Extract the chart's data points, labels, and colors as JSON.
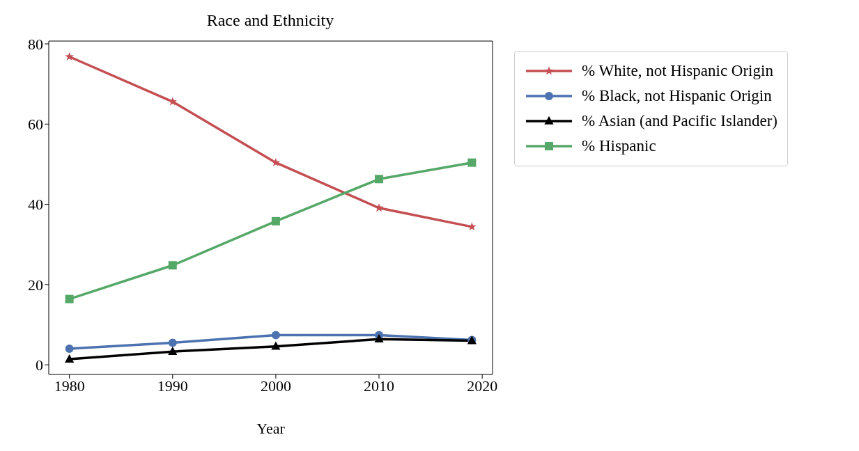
{
  "chart_data": {
    "type": "line",
    "title": "Race and Ethnicity",
    "xlabel": "Year",
    "x": [
      1980,
      1990,
      2000,
      2010,
      2019
    ],
    "series": [
      {
        "name": "% White, not Hispanic Origin",
        "color": "#c44e52",
        "marker": "star",
        "values": [
          76.8,
          65.6,
          50.4,
          39.1,
          34.4
        ]
      },
      {
        "name": "% Black, not Hispanic Origin",
        "color": "#4c72b0",
        "marker": "circle",
        "values": [
          4.0,
          5.5,
          7.4,
          7.4,
          6.2
        ]
      },
      {
        "name": "% Asian (and Pacific Islander)",
        "color": "#000000",
        "marker": "triangle",
        "values": [
          1.4,
          3.3,
          4.6,
          6.4,
          6.0
        ]
      },
      {
        "name": "% Hispanic",
        "color": "#55a868",
        "marker": "square",
        "values": [
          16.4,
          24.8,
          35.8,
          46.3,
          50.4
        ]
      }
    ],
    "xlim": [
      1978,
      2021
    ],
    "xticks": [
      1980,
      1990,
      2000,
      2010,
      2020
    ],
    "ylim": [
      -2.4,
      80.7
    ],
    "yticks": [
      0,
      20,
      40,
      60,
      80
    ],
    "legend": "right",
    "line_style": "solid"
  }
}
